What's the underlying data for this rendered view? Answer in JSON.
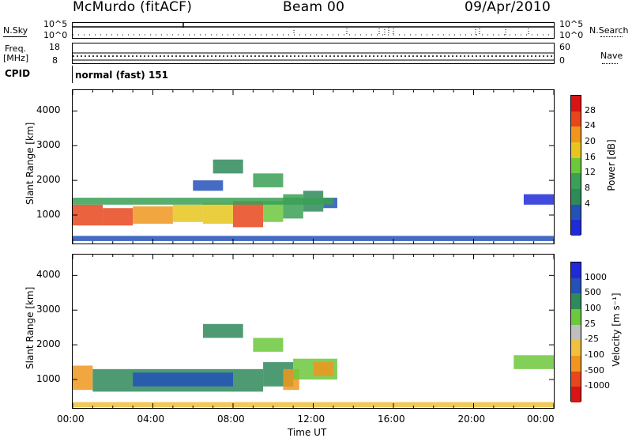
{
  "header": {
    "station": "McMurdo (fitACF)",
    "beam": "Beam 00",
    "date": "09/Apr/2010"
  },
  "summary": {
    "nsky_label": "N.Sky",
    "nsearch_label": "N.Search",
    "nsky_ticks": [
      "10^5",
      "10^0"
    ],
    "nsearch_ticks": [
      "10^5",
      "10^0"
    ],
    "freq_label_1": "Freq.",
    "freq_label_2": "[MHz]",
    "freq_ticks": [
      "18",
      "8"
    ],
    "nave_label": "Nave",
    "nave_ticks": [
      "60",
      "0"
    ],
    "cpid_label": "CPID",
    "cpid_text": "normal (fast) 151"
  },
  "chart_data": [
    {
      "type": "heatmap",
      "name": "power",
      "ylabel": "Slant Range [km]",
      "ylim": [
        180,
        4600
      ],
      "yticks": [
        1000,
        2000,
        3000,
        4000
      ],
      "xlim": [
        0,
        24
      ],
      "colorbar_label": "Power [dB]",
      "colorbar_ticks": [
        "4",
        "8",
        "12",
        "16",
        "20",
        "24",
        "28"
      ],
      "colors": [
        "#1f2bd8",
        "#2451b8",
        "#2f8a5a",
        "#3aa055",
        "#6cc83c",
        "#e8c51e",
        "#f0961e",
        "#e8461c",
        "#d81414"
      ],
      "cells": [
        [
          0.0,
          1.5,
          700,
          1300,
          7
        ],
        [
          1.5,
          3.0,
          700,
          1200,
          7
        ],
        [
          3.0,
          5.0,
          750,
          1250,
          6
        ],
        [
          5.0,
          6.5,
          800,
          1300,
          5
        ],
        [
          6.5,
          8.0,
          750,
          1350,
          5
        ],
        [
          8.0,
          9.5,
          650,
          1400,
          7
        ],
        [
          9.5,
          10.5,
          800,
          1400,
          4
        ],
        [
          10.5,
          11.5,
          900,
          1600,
          3
        ],
        [
          11.5,
          12.5,
          1100,
          1700,
          2
        ],
        [
          12.5,
          13.2,
          1200,
          1500,
          1
        ],
        [
          0.0,
          13.0,
          1300,
          1500,
          3
        ],
        [
          7.0,
          8.5,
          2200,
          2600,
          2
        ],
        [
          9.0,
          10.5,
          1800,
          2200,
          3
        ],
        [
          6.0,
          7.5,
          1700,
          2000,
          1
        ],
        [
          22.5,
          24.0,
          1300,
          1600,
          0
        ],
        [
          0.0,
          24.0,
          250,
          400,
          1
        ]
      ]
    },
    {
      "type": "heatmap",
      "name": "velocity",
      "ylabel": "Slant Range [km]",
      "ylim": [
        180,
        4600
      ],
      "yticks": [
        1000,
        2000,
        3000,
        4000
      ],
      "xlim": [
        0,
        24
      ],
      "colorbar_label": "Velocity [m s⁻¹]",
      "colorbar_ticks": [
        "1000",
        "500",
        "100",
        "25",
        "-25",
        "-100",
        "-500",
        "-1000"
      ],
      "colors": [
        "#1f2bd8",
        "#2451b8",
        "#2f8a5a",
        "#6cc83c",
        "#bfbfbf",
        "#f0c040",
        "#f0961e",
        "#e8461c",
        "#d81414"
      ],
      "cells": [
        [
          0.0,
          1.0,
          700,
          1400,
          6
        ],
        [
          1.0,
          9.5,
          650,
          1300,
          2
        ],
        [
          3.0,
          8.0,
          800,
          1200,
          1
        ],
        [
          9.5,
          11.0,
          800,
          1500,
          2
        ],
        [
          10.5,
          11.3,
          700,
          1300,
          6
        ],
        [
          11.0,
          13.2,
          1000,
          1600,
          3
        ],
        [
          12.0,
          13.0,
          1100,
          1500,
          6
        ],
        [
          6.5,
          8.5,
          2200,
          2600,
          2
        ],
        [
          9.0,
          10.5,
          1800,
          2200,
          3
        ],
        [
          22.0,
          24.0,
          1300,
          1700,
          3
        ],
        [
          0.0,
          24.0,
          200,
          350,
          5
        ]
      ]
    }
  ],
  "xaxis": {
    "label": "Time UT",
    "ticks": [
      "00:00",
      "04:00",
      "08:00",
      "12:00",
      "16:00",
      "20:00",
      "00:00"
    ]
  }
}
